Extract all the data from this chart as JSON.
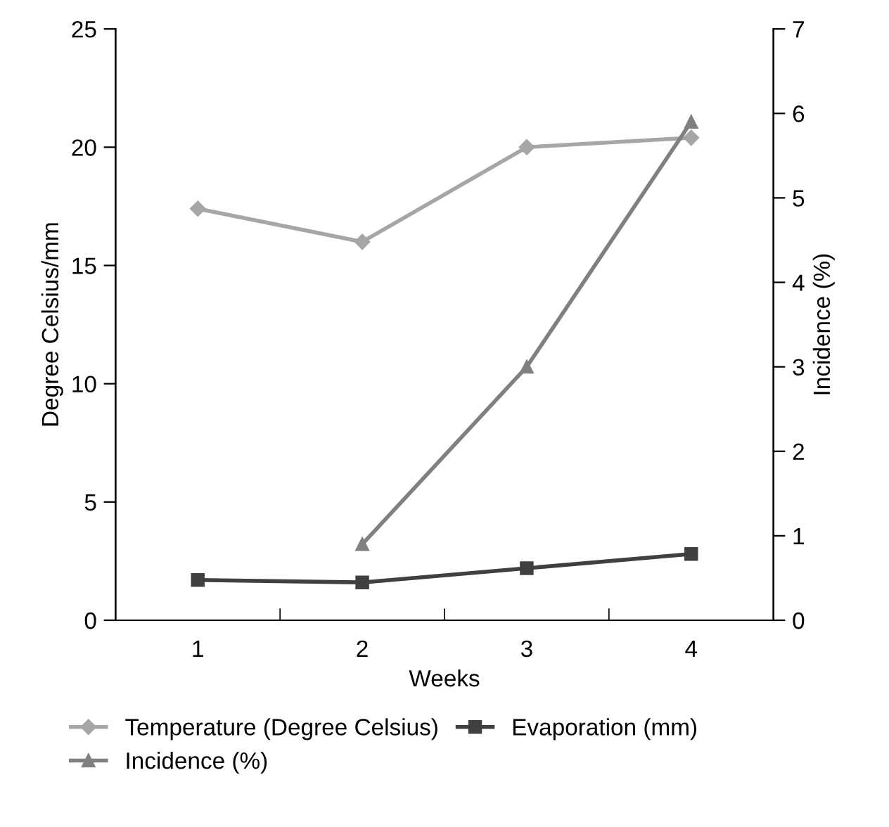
{
  "chart_data": {
    "type": "line",
    "xlabel": "Weeks",
    "ylabel": "Degree Celsius/mm",
    "y2label": "Incidence (%)",
    "categories": [
      "1",
      "2",
      "3",
      "4"
    ],
    "series": [
      {
        "name": "Temperature (Degree Celsius)",
        "color": "#a6a6a6",
        "marker": "diamond",
        "values": [
          17.4,
          16.0,
          20.0,
          20.4
        ]
      },
      {
        "name": "Evaporation (mm)",
        "color": "#404040",
        "marker": "square",
        "values": [
          1.7,
          1.6,
          2.2,
          2.8
        ]
      },
      {
        "name": "Incidence (%)",
        "color": "#808080",
        "marker": "triangle",
        "axis": "y2",
        "values": [
          null,
          0.9,
          3.0,
          5.9
        ]
      }
    ],
    "ylim": [
      0,
      25
    ],
    "yticks": [
      0,
      5,
      10,
      15,
      20,
      25
    ],
    "y2lim": [
      0,
      7
    ],
    "y2ticks": [
      0,
      1,
      2,
      3,
      4,
      5,
      6,
      7
    ],
    "grid": false,
    "legend": "bottom",
    "line_style": "solid"
  }
}
